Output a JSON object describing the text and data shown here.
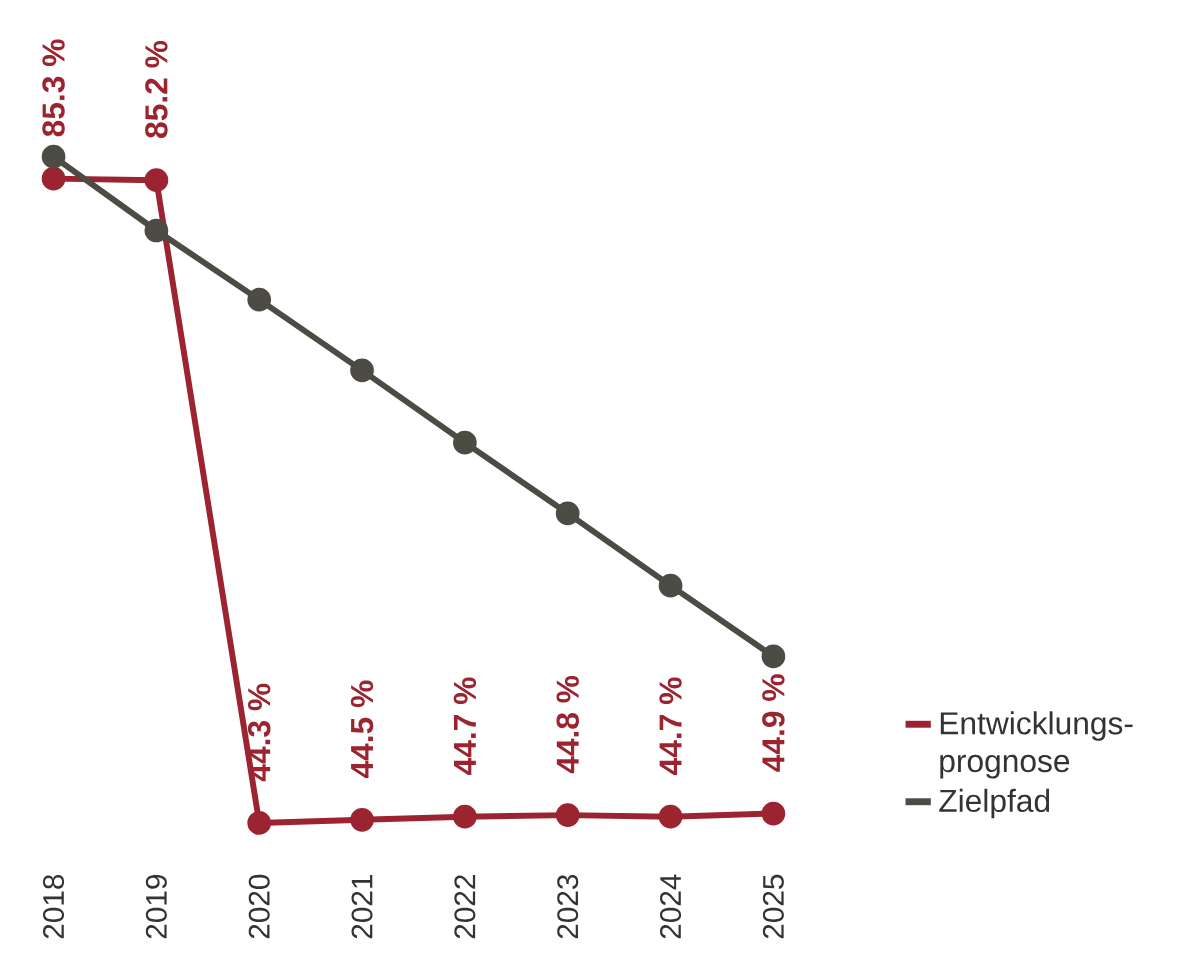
{
  "chart_data": {
    "type": "line",
    "categories": [
      "2018",
      "2019",
      "2020",
      "2021",
      "2022",
      "2023",
      "2024",
      "2025"
    ],
    "series": [
      {
        "name": "Entwicklungs-prognose",
        "color": "#9b2430",
        "values": [
          85.3,
          85.2,
          44.3,
          44.5,
          44.7,
          44.8,
          44.7,
          44.9
        ],
        "value_labels": [
          "85.3 %",
          "85.2 %",
          "44.3 %",
          "44.5 %",
          "44.7 %",
          "44.8 %",
          "44.7 %",
          "44.9 %"
        ]
      },
      {
        "name": "Zielpfad",
        "color": "#4d4c44",
        "values": [
          86.7,
          82.0,
          77.6,
          73.1,
          68.5,
          64.0,
          59.4,
          54.9
        ]
      }
    ],
    "legend": "right",
    "marker": "circle",
    "line_style": "solid",
    "grid": false
  }
}
